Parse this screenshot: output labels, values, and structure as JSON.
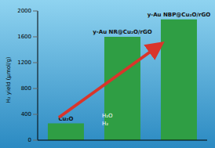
{
  "chart_data": {
    "type": "bar",
    "categories": [
      "Cu₂O",
      "y-Au NR@Cu₂O/rGO",
      "y-Au NBP@Cu₂O/rGO"
    ],
    "values": [
      260,
      1600,
      1870
    ],
    "color": "#2f9e44",
    "ylabel": "H₂ yield (μmol/g)",
    "ylim": [
      0,
      2000
    ],
    "yticks": [
      0,
      400,
      800,
      1200,
      1600,
      2000
    ],
    "tick_labels": "y",
    "annotations": [
      "H₂O",
      "H₂"
    ]
  }
}
